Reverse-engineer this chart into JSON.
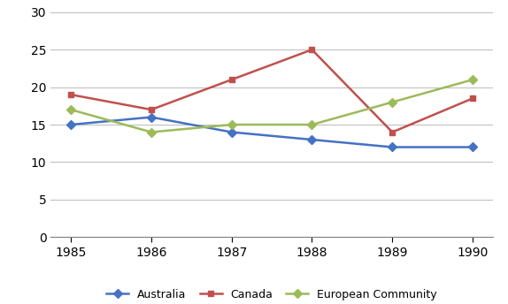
{
  "years": [
    1985,
    1986,
    1987,
    1988,
    1989,
    1990
  ],
  "australia": [
    15,
    16,
    14,
    13,
    12,
    12
  ],
  "canada": [
    19,
    17,
    21,
    25,
    14,
    18.5
  ],
  "european_community": [
    17,
    14,
    15,
    15,
    18,
    21
  ],
  "australia_color": "#4472C4",
  "canada_color": "#C0504D",
  "ec_color": "#9BBB59",
  "australia_label": "Australia",
  "canada_label": "Canada",
  "ec_label": "European Community",
  "ylim": [
    0,
    30
  ],
  "yticks": [
    0,
    5,
    10,
    15,
    20,
    25,
    30
  ],
  "background_color": "#FFFFFF",
  "grid_color": "#C0C0C0",
  "linewidth": 1.8,
  "markersize": 5,
  "tick_fontsize": 10,
  "legend_fontsize": 9
}
